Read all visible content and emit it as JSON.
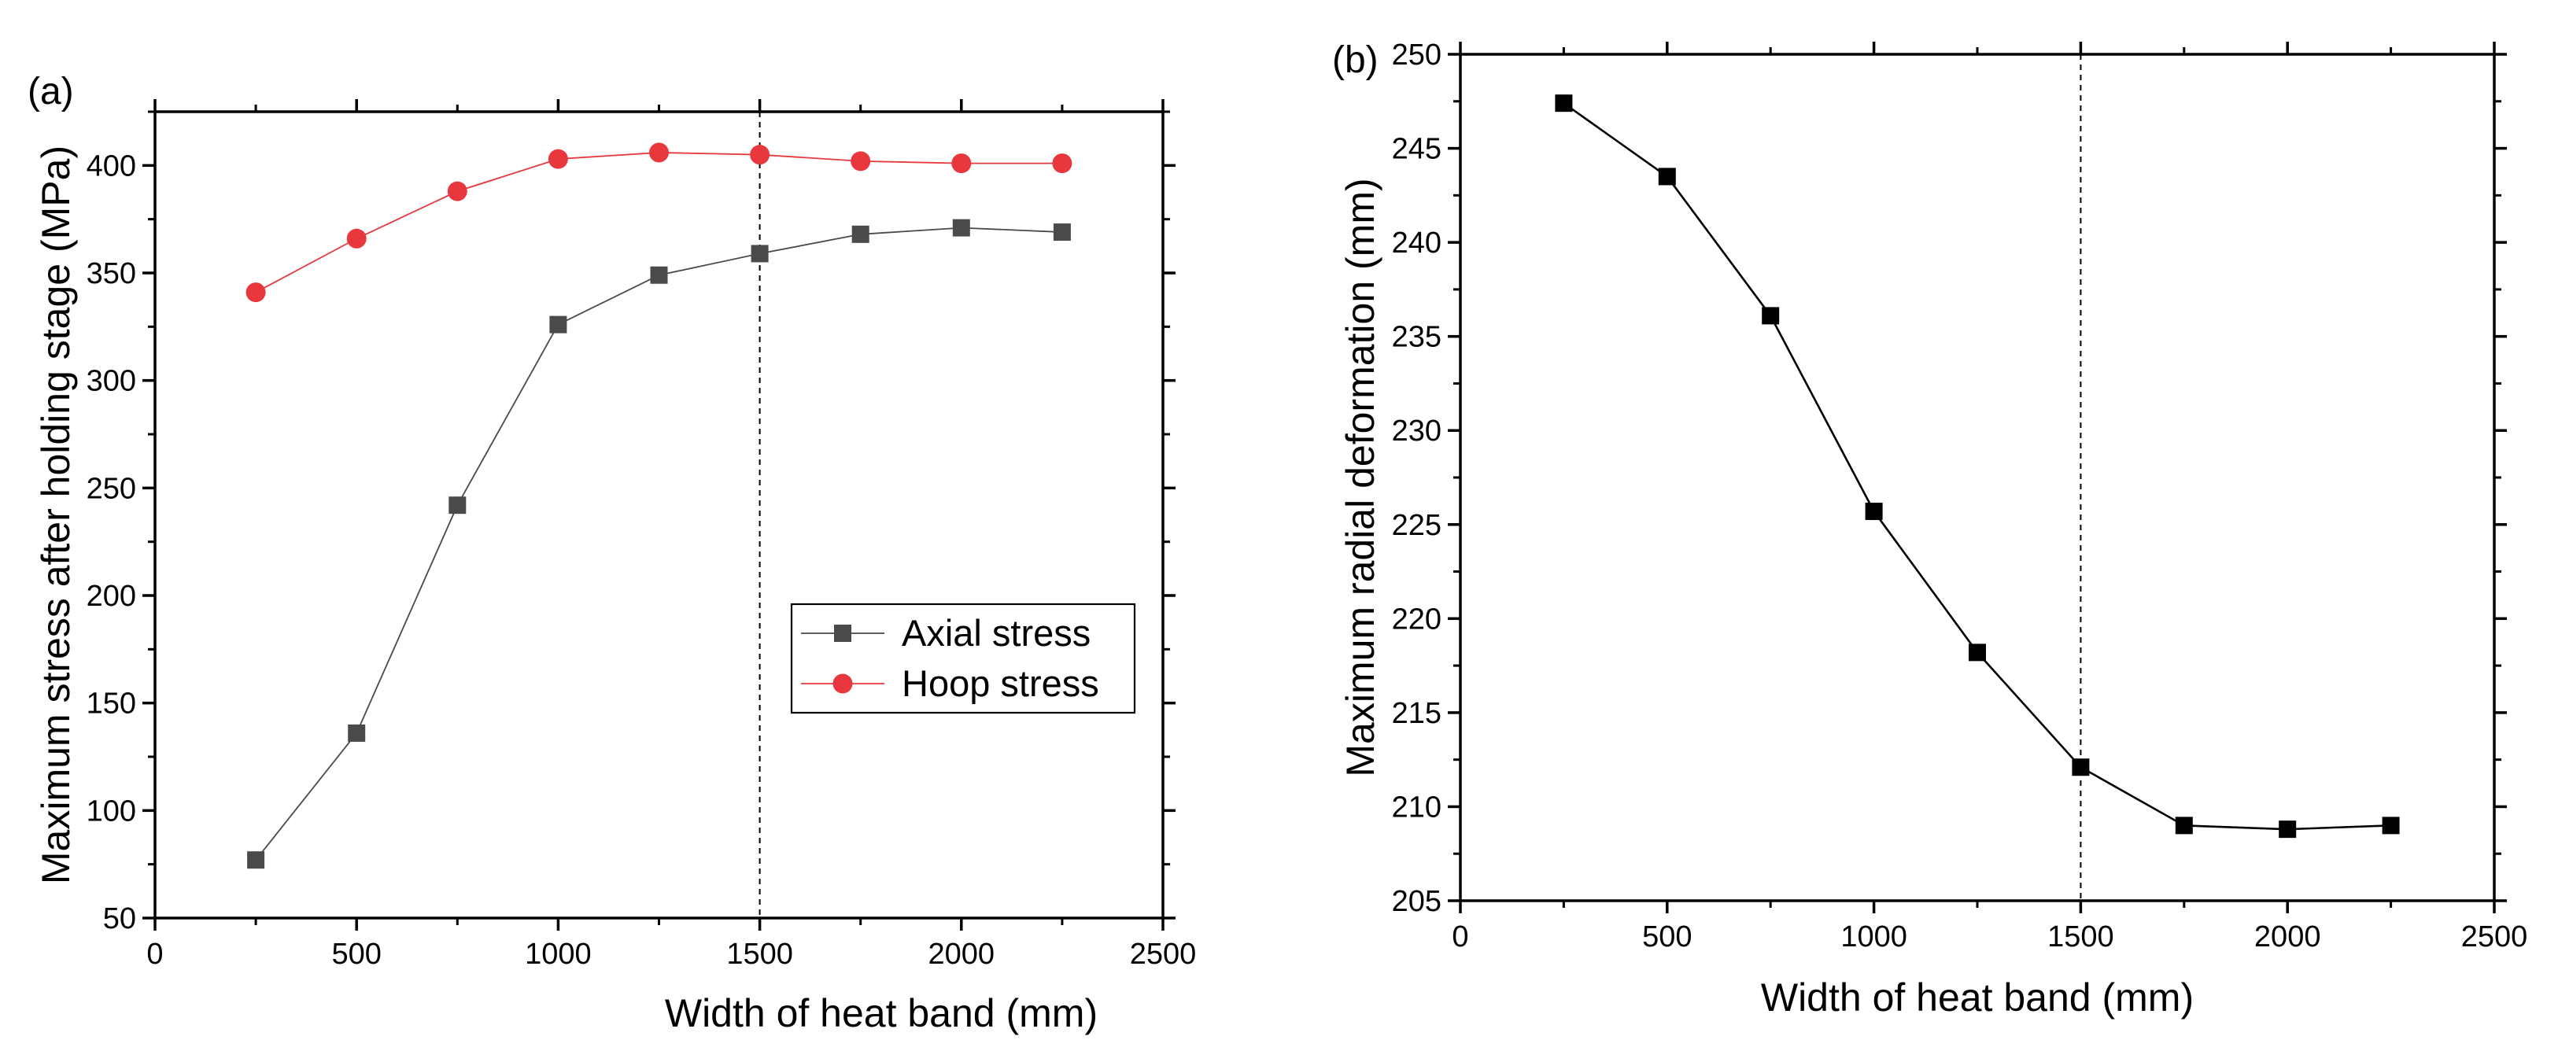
{
  "chart_data": [
    {
      "type": "line",
      "panel_label": "(a)",
      "xlabel": "Width of heat band (mm)",
      "ylabel": "Maximum stress after holding stage (MPa)",
      "xlim": [
        0,
        2500
      ],
      "ylim": [
        50,
        425
      ],
      "xticks": [
        0,
        500,
        1000,
        1500,
        2000,
        2500
      ],
      "yticks": [
        50,
        100,
        150,
        200,
        250,
        300,
        350,
        400
      ],
      "grid": false,
      "reference_line_x": 1500,
      "legend_position": "right-middle",
      "series": [
        {
          "name": "Axial stress",
          "marker": "square",
          "color": "#4a4a4a",
          "x": [
            250,
            500,
            750,
            1000,
            1250,
            1500,
            1750,
            2000,
            2250
          ],
          "values": [
            77,
            136,
            242,
            326,
            349,
            359,
            368,
            371,
            369
          ]
        },
        {
          "name": "Hoop stress",
          "marker": "circle",
          "color": "#e8383d",
          "x": [
            250,
            500,
            750,
            1000,
            1250,
            1500,
            1750,
            2000,
            2250
          ],
          "values": [
            341,
            366,
            388,
            403,
            406,
            405,
            402,
            401,
            401
          ]
        }
      ]
    },
    {
      "type": "line",
      "panel_label": "(b)",
      "xlabel": "Width of heat band (mm)",
      "ylabel": "Maximum radial deformation (mm)",
      "xlim": [
        0,
        2500
      ],
      "ylim": [
        205,
        250
      ],
      "xticks": [
        0,
        500,
        1000,
        1500,
        2000,
        2500
      ],
      "yticks": [
        205,
        210,
        215,
        220,
        225,
        230,
        235,
        240,
        245,
        250
      ],
      "grid": false,
      "reference_line_x": 1500,
      "series": [
        {
          "name": "Maximum radial deformation",
          "marker": "square",
          "color": "#000000",
          "x": [
            250,
            500,
            750,
            1000,
            1250,
            1500,
            1750,
            2000,
            2250
          ],
          "values": [
            247.4,
            243.5,
            236.1,
            225.7,
            218.2,
            212.1,
            209.0,
            208.8,
            209.0
          ]
        }
      ]
    }
  ]
}
